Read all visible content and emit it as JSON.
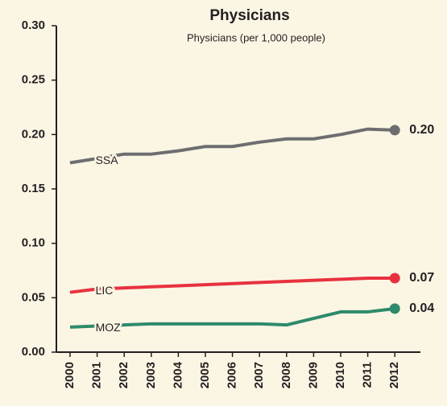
{
  "chart_data": {
    "type": "line",
    "title": "Physicians",
    "subtitle": "Physicians (per 1,000 people)",
    "categories": [
      "2000",
      "2001",
      "2002",
      "2003",
      "2004",
      "2005",
      "2006",
      "2007",
      "2008",
      "2009",
      "2010",
      "2011",
      "2012"
    ],
    "series": [
      {
        "name": "SSA",
        "color": "#6d6e70",
        "values": [
          0.174,
          0.178,
          0.182,
          0.182,
          0.185,
          0.189,
          0.189,
          0.193,
          0.196,
          0.196,
          0.2,
          0.205,
          0.204
        ],
        "value_labels": [
          null,
          null,
          null,
          null,
          null,
          null,
          null,
          null,
          null,
          null,
          null,
          null,
          "0.20"
        ]
      },
      {
        "name": "LIC",
        "color": "#e8313f",
        "values": [
          0.055,
          0.058,
          0.059,
          0.06,
          0.061,
          0.062,
          0.063,
          0.064,
          0.065,
          0.066,
          0.067,
          0.068,
          0.068
        ],
        "value_labels": [
          null,
          null,
          null,
          null,
          null,
          null,
          null,
          null,
          null,
          null,
          null,
          null,
          "0.07"
        ]
      },
      {
        "name": "MOZ",
        "color": "#2e8a6a",
        "values": [
          0.023,
          0.024,
          0.025,
          0.026,
          0.026,
          0.026,
          0.026,
          0.026,
          0.025,
          0.031,
          0.037,
          0.037,
          0.04
        ],
        "value_labels": [
          null,
          null,
          null,
          null,
          null,
          null,
          null,
          null,
          null,
          null,
          null,
          null,
          "0.04"
        ]
      }
    ],
    "ylim": [
      0,
      0.3
    ],
    "yticks": [
      {
        "value": 0,
        "label": "0.00"
      },
      {
        "value": 0.05,
        "label": "0.05"
      },
      {
        "value": 0.1,
        "label": "0.10"
      },
      {
        "value": 0.15,
        "label": "0.15"
      },
      {
        "value": 0.2,
        "label": "0.20"
      },
      {
        "value": 0.25,
        "label": "0.25"
      },
      {
        "value": 0.3,
        "label": "0.30"
      }
    ],
    "grid": false
  }
}
